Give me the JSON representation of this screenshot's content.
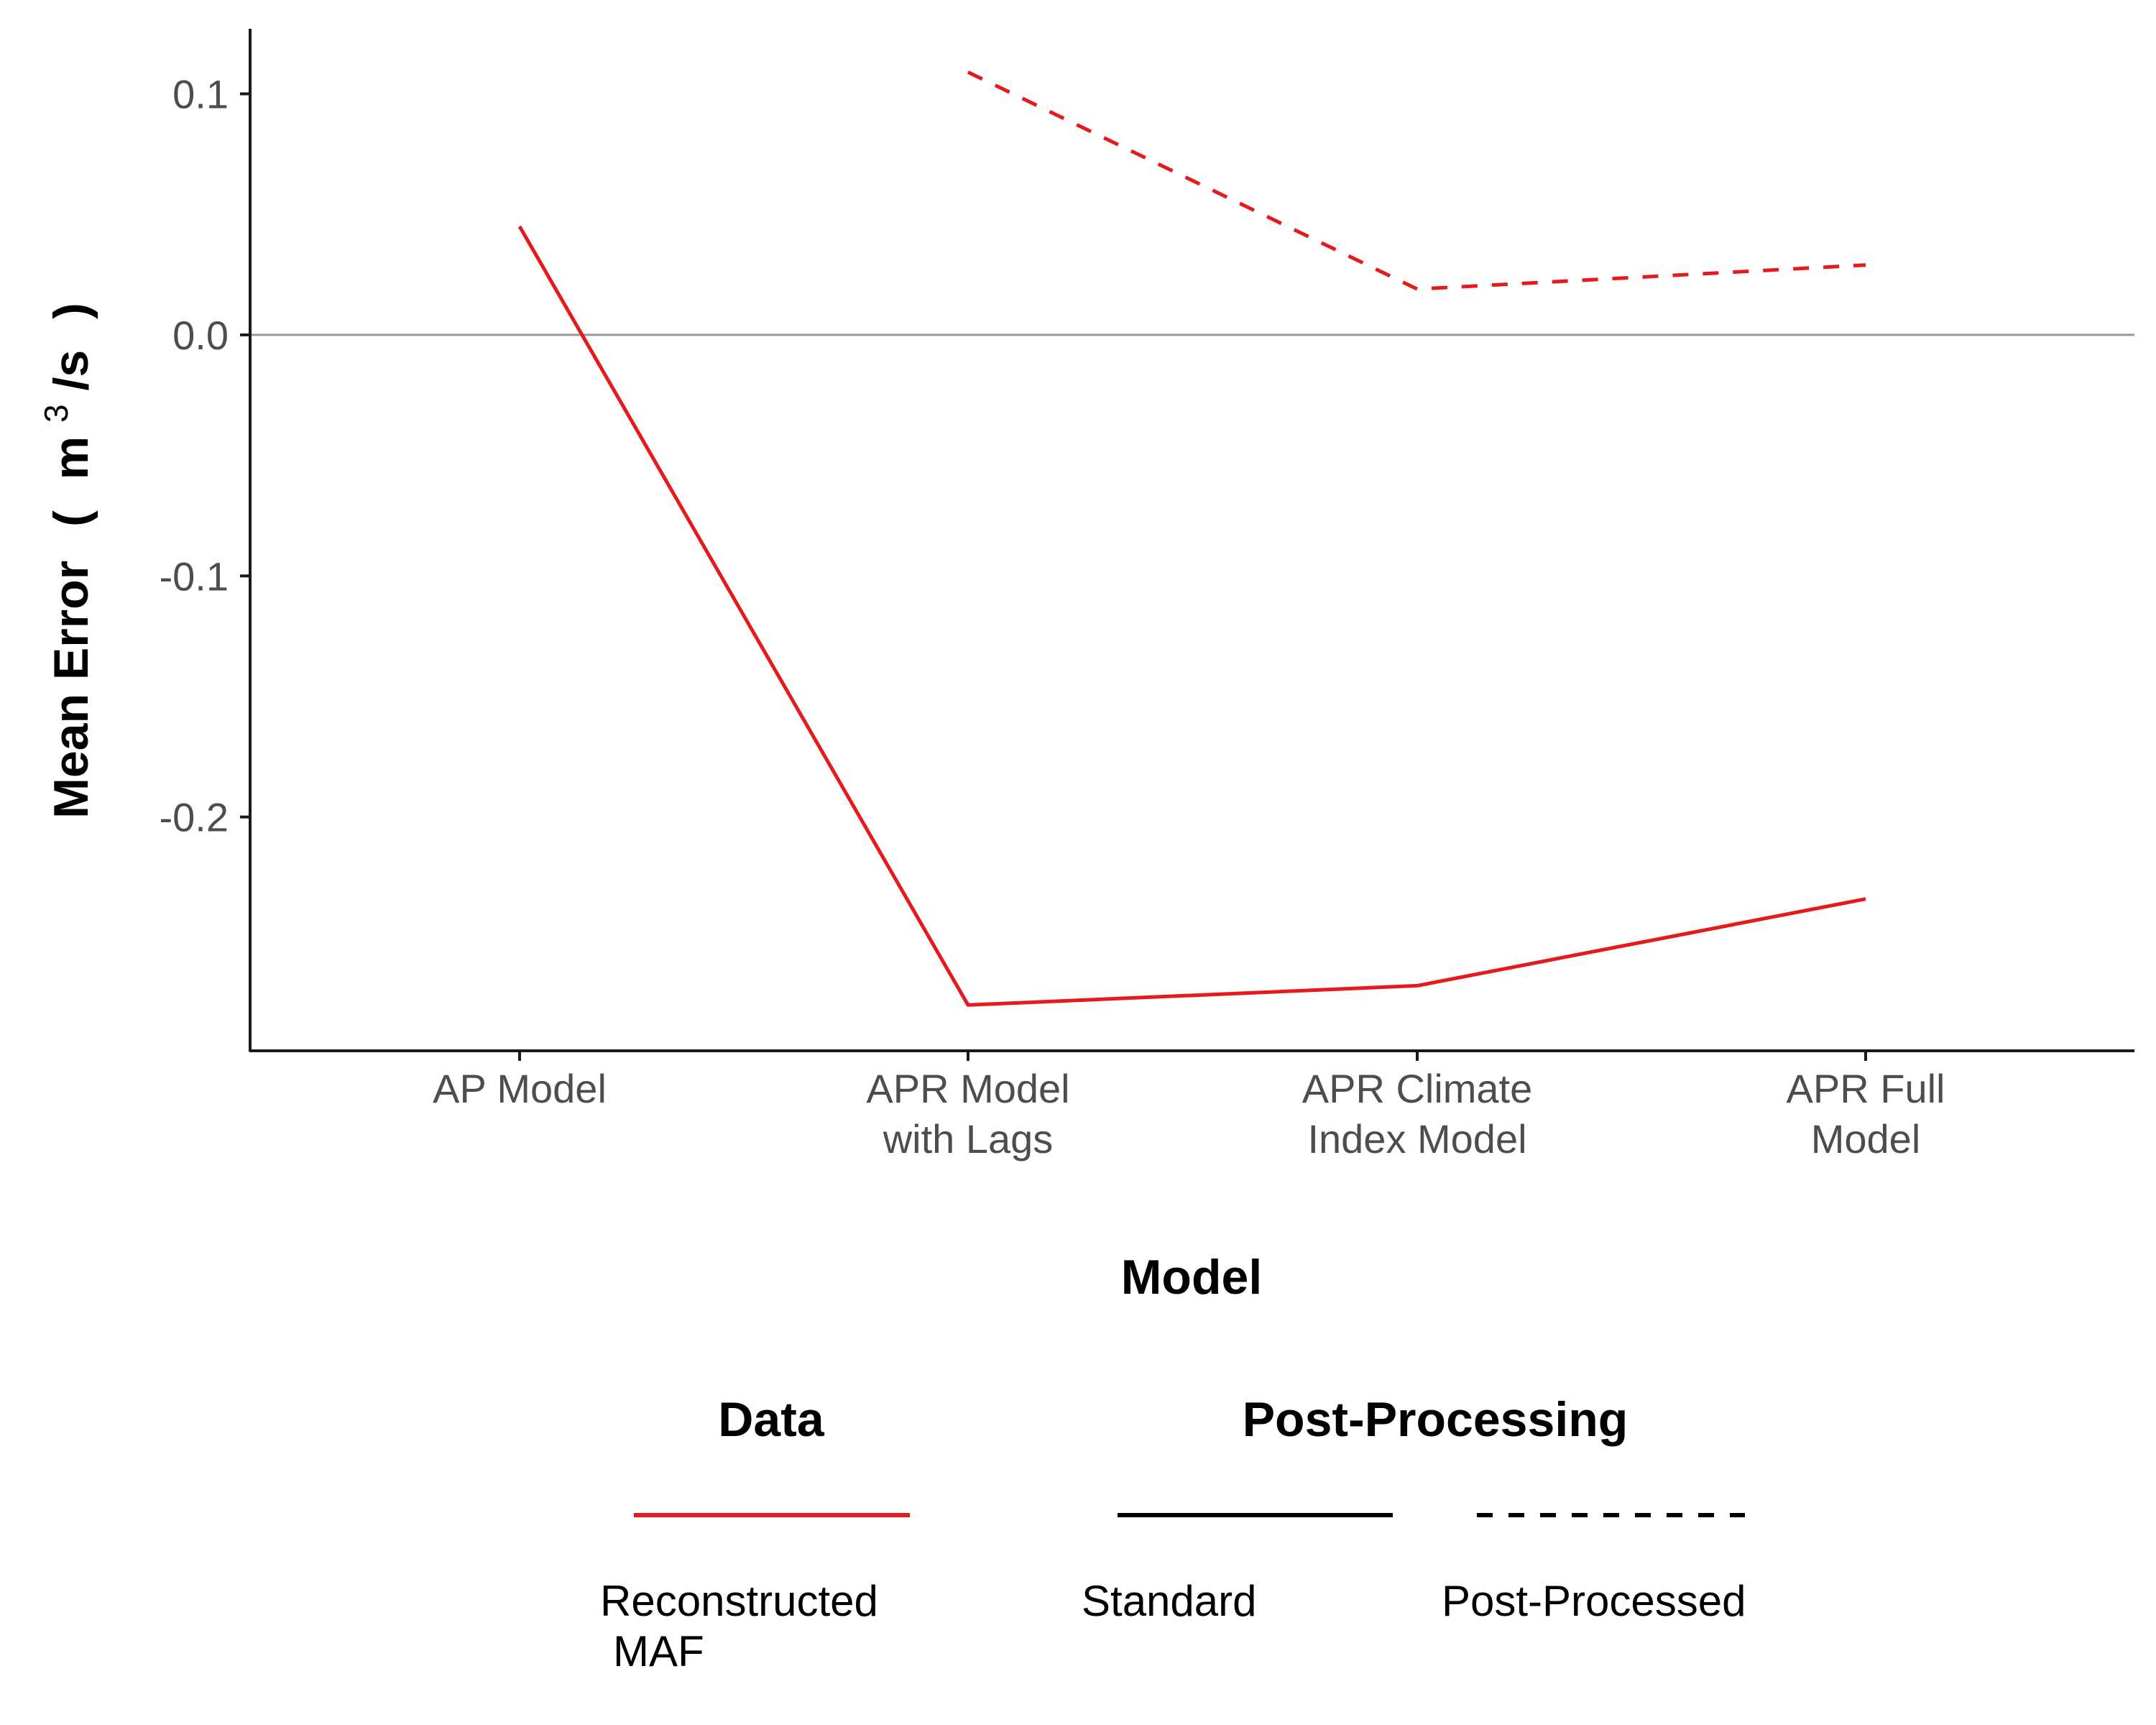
{
  "chart_data": {
    "type": "line",
    "title": "",
    "xlabel": "Model",
    "ylabel": {
      "main": "Mean Error",
      "open": "(",
      "unit": "m",
      "superscript": "3",
      "unit_rest": "/s",
      "close": ")"
    },
    "categories": [
      [
        "AP Model"
      ],
      [
        "APR Model",
        "with Lags"
      ],
      [
        "APR Climate",
        "Index Model"
      ],
      [
        "APR Full",
        "Model"
      ]
    ],
    "ylim": [
      -0.297,
      0.127
    ],
    "yticks": [
      0.1,
      0.0,
      -0.1,
      -0.2
    ],
    "ytick_labels": [
      "0.1",
      "0.0",
      "-0.1",
      "-0.2"
    ],
    "reference_line": 0.0,
    "grid": false,
    "series": [
      {
        "data": "Reconstructed MAF",
        "post_processing": "Standard",
        "color": "#e41a1c",
        "dash": "solid",
        "values": [
          0.045,
          -0.278,
          -0.27,
          -0.234
        ]
      },
      {
        "data": "Reconstructed MAF",
        "post_processing": "Post-Processed",
        "color": "#e41a1c",
        "dash": "dashed",
        "values": [
          null,
          0.109,
          0.019,
          0.029
        ]
      }
    ],
    "legend": {
      "placement": "bottom",
      "groups": [
        {
          "title": "Data",
          "entries": [
            {
              "label": [
                "Reconstructed",
                "MAF"
              ],
              "color": "#e41a1c",
              "dash": "solid"
            }
          ]
        },
        {
          "title": "Post-Processing",
          "entries": [
            {
              "label": [
                "Standard"
              ],
              "color": "#000000",
              "dash": "solid"
            },
            {
              "label": [
                "Post-Processed"
              ],
              "color": "#000000",
              "dash": "dashed"
            }
          ]
        }
      ]
    }
  }
}
